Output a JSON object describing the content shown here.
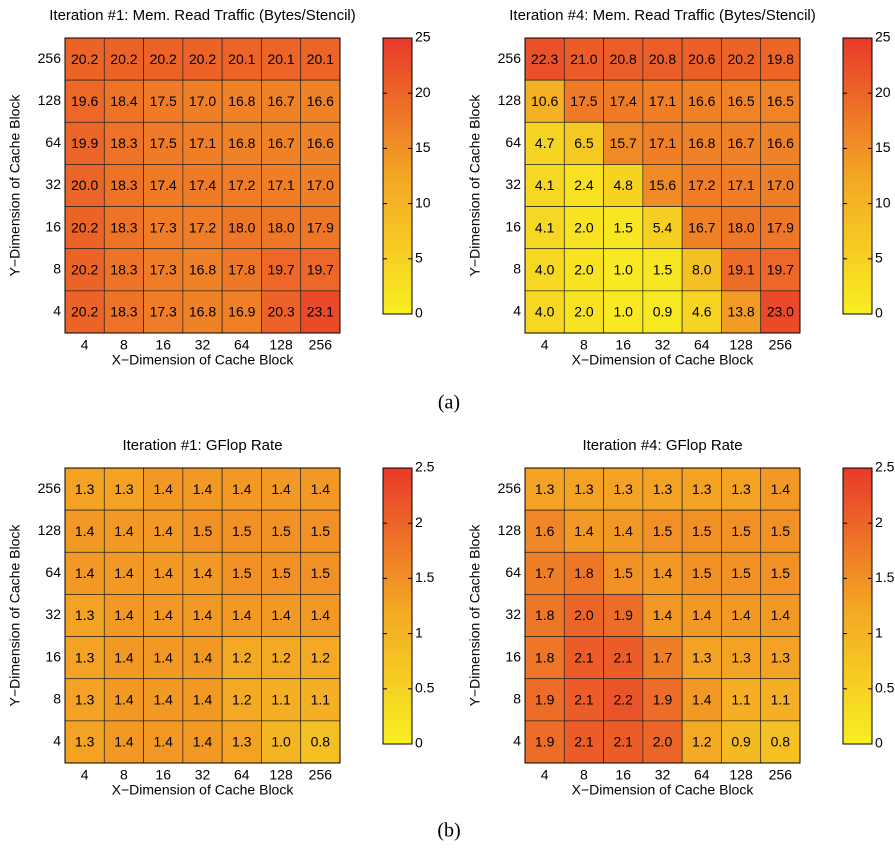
{
  "chart_data": [
    {
      "type": "heatmap",
      "title": "Iteration #1: Mem. Read Traffic (Bytes/Stencil)",
      "x_label": "X−Dimension of Cache Block",
      "y_label": "Y−Dimension of Cache Block",
      "x_categories": [
        "4",
        "8",
        "16",
        "32",
        "64",
        "128",
        "256"
      ],
      "y_categories": [
        "256",
        "128",
        "64",
        "32",
        "16",
        "8",
        "4"
      ],
      "values": [
        [
          20.2,
          20.2,
          20.2,
          20.2,
          20.1,
          20.1,
          20.1
        ],
        [
          19.6,
          18.4,
          17.5,
          17.0,
          16.8,
          16.7,
          16.6
        ],
        [
          19.9,
          18.3,
          17.5,
          17.1,
          16.8,
          16.7,
          16.6
        ],
        [
          20.0,
          18.3,
          17.4,
          17.4,
          17.2,
          17.1,
          17.0
        ],
        [
          20.2,
          18.3,
          17.3,
          17.2,
          18.0,
          18.0,
          17.9
        ],
        [
          20.2,
          18.3,
          17.3,
          16.8,
          17.8,
          19.7,
          19.7
        ],
        [
          20.2,
          18.3,
          17.3,
          16.8,
          16.9,
          20.3,
          23.1
        ]
      ],
      "value_labels": [
        [
          "20.2",
          "20.2",
          "20.2",
          "20.2",
          "20.1",
          "20.1",
          "20.1"
        ],
        [
          "19.6",
          "18.4",
          "17.5",
          "17.0",
          "16.8",
          "16.7",
          "16.6"
        ],
        [
          "19.9",
          "18.3",
          "17.5",
          "17.1",
          "16.8",
          "16.7",
          "16.6"
        ],
        [
          "20.0",
          "18.3",
          "17.4",
          "17.4",
          "17.2",
          "17.1",
          "17.0"
        ],
        [
          "20.2",
          "18.3",
          "17.3",
          "17.2",
          "18.0",
          "18.0",
          "17.9"
        ],
        [
          "20.2",
          "18.3",
          "17.3",
          "16.8",
          "17.8",
          "19.7",
          "19.7"
        ],
        [
          "20.2",
          "18.3",
          "17.3",
          "16.8",
          "16.9",
          "20.3",
          "23.1"
        ]
      ],
      "zlim": [
        0,
        25
      ],
      "zticks": [
        0,
        5,
        10,
        15,
        20,
        25
      ],
      "colormap": [
        "#f8ef22",
        "#f3a624",
        "#e8392b"
      ]
    },
    {
      "type": "heatmap",
      "title": "Iteration #4: Mem. Read Traffic (Bytes/Stencil)",
      "x_label": "X−Dimension of Cache Block",
      "y_label": "Y−Dimension of Cache Block",
      "x_categories": [
        "4",
        "8",
        "16",
        "32",
        "64",
        "128",
        "256"
      ],
      "y_categories": [
        "256",
        "128",
        "64",
        "32",
        "16",
        "8",
        "4"
      ],
      "values": [
        [
          22.3,
          21.0,
          20.8,
          20.8,
          20.6,
          20.2,
          19.8
        ],
        [
          10.6,
          17.5,
          17.4,
          17.1,
          16.6,
          16.5,
          16.5
        ],
        [
          4.7,
          6.5,
          15.7,
          17.1,
          16.8,
          16.7,
          16.6
        ],
        [
          4.1,
          2.4,
          4.8,
          15.6,
          17.2,
          17.1,
          17.0
        ],
        [
          4.1,
          2.0,
          1.5,
          5.4,
          16.7,
          18.0,
          17.9
        ],
        [
          4.0,
          2.0,
          1.0,
          1.5,
          8.0,
          19.1,
          19.7
        ],
        [
          4.0,
          2.0,
          1.0,
          0.9,
          4.6,
          13.8,
          23.0
        ]
      ],
      "value_labels": [
        [
          "22.3",
          "21.0",
          "20.8",
          "20.8",
          "20.6",
          "20.2",
          "19.8"
        ],
        [
          "10.6",
          "17.5",
          "17.4",
          "17.1",
          "16.6",
          "16.5",
          "16.5"
        ],
        [
          "4.7",
          "6.5",
          "15.7",
          "17.1",
          "16.8",
          "16.7",
          "16.6"
        ],
        [
          "4.1",
          "2.4",
          "4.8",
          "15.6",
          "17.2",
          "17.1",
          "17.0"
        ],
        [
          "4.1",
          "2.0",
          "1.5",
          "5.4",
          "16.7",
          "18.0",
          "17.9"
        ],
        [
          "4.0",
          "2.0",
          "1.0",
          "1.5",
          "8.0",
          "19.1",
          "19.7"
        ],
        [
          "4.0",
          "2.0",
          "1.0",
          "0.9",
          "4.6",
          "13.8",
          "23.0"
        ]
      ],
      "zlim": [
        0,
        25
      ],
      "zticks": [
        0,
        5,
        10,
        15,
        20,
        25
      ],
      "colormap": [
        "#f8ef22",
        "#f3a624",
        "#e8392b"
      ]
    },
    {
      "type": "heatmap",
      "title": "Iteration #1: GFlop Rate",
      "x_label": "X−Dimension of Cache Block",
      "y_label": "Y−Dimension of Cache Block",
      "x_categories": [
        "4",
        "8",
        "16",
        "32",
        "64",
        "128",
        "256"
      ],
      "y_categories": [
        "256",
        "128",
        "64",
        "32",
        "16",
        "8",
        "4"
      ],
      "values": [
        [
          1.3,
          1.3,
          1.4,
          1.4,
          1.4,
          1.4,
          1.4
        ],
        [
          1.4,
          1.4,
          1.4,
          1.5,
          1.5,
          1.5,
          1.5
        ],
        [
          1.4,
          1.4,
          1.4,
          1.4,
          1.5,
          1.5,
          1.5
        ],
        [
          1.3,
          1.4,
          1.4,
          1.4,
          1.4,
          1.4,
          1.4
        ],
        [
          1.3,
          1.4,
          1.4,
          1.4,
          1.2,
          1.2,
          1.2
        ],
        [
          1.3,
          1.4,
          1.4,
          1.4,
          1.2,
          1.1,
          1.1
        ],
        [
          1.3,
          1.4,
          1.4,
          1.4,
          1.3,
          1.0,
          0.8
        ]
      ],
      "value_labels": [
        [
          "1.3",
          "1.3",
          "1.4",
          "1.4",
          "1.4",
          "1.4",
          "1.4"
        ],
        [
          "1.4",
          "1.4",
          "1.4",
          "1.5",
          "1.5",
          "1.5",
          "1.5"
        ],
        [
          "1.4",
          "1.4",
          "1.4",
          "1.4",
          "1.5",
          "1.5",
          "1.5"
        ],
        [
          "1.3",
          "1.4",
          "1.4",
          "1.4",
          "1.4",
          "1.4",
          "1.4"
        ],
        [
          "1.3",
          "1.4",
          "1.4",
          "1.4",
          "1.2",
          "1.2",
          "1.2"
        ],
        [
          "1.3",
          "1.4",
          "1.4",
          "1.4",
          "1.2",
          "1.1",
          "1.1"
        ],
        [
          "1.3",
          "1.4",
          "1.4",
          "1.4",
          "1.3",
          "1.0",
          "0.8"
        ]
      ],
      "zlim": [
        0,
        2.5
      ],
      "zticks": [
        0,
        0.5,
        1,
        1.5,
        2,
        2.5
      ],
      "colormap": [
        "#f8ef22",
        "#f3a624",
        "#e8392b"
      ]
    },
    {
      "type": "heatmap",
      "title": "Iteration #4: GFlop Rate",
      "x_label": "X−Dimension of Cache Block",
      "y_label": "Y−Dimension of Cache Block",
      "x_categories": [
        "4",
        "8",
        "16",
        "32",
        "64",
        "128",
        "256"
      ],
      "y_categories": [
        "256",
        "128",
        "64",
        "32",
        "16",
        "8",
        "4"
      ],
      "values": [
        [
          1.3,
          1.3,
          1.3,
          1.3,
          1.3,
          1.3,
          1.4
        ],
        [
          1.6,
          1.4,
          1.4,
          1.5,
          1.5,
          1.5,
          1.5
        ],
        [
          1.7,
          1.8,
          1.5,
          1.4,
          1.5,
          1.5,
          1.5
        ],
        [
          1.8,
          2.0,
          1.9,
          1.4,
          1.4,
          1.4,
          1.4
        ],
        [
          1.8,
          2.1,
          2.1,
          1.7,
          1.3,
          1.3,
          1.3
        ],
        [
          1.9,
          2.1,
          2.2,
          1.9,
          1.4,
          1.1,
          1.1
        ],
        [
          1.9,
          2.1,
          2.1,
          2.0,
          1.2,
          0.9,
          0.8
        ]
      ],
      "value_labels": [
        [
          "1.3",
          "1.3",
          "1.3",
          "1.3",
          "1.3",
          "1.3",
          "1.4"
        ],
        [
          "1.6",
          "1.4",
          "1.4",
          "1.5",
          "1.5",
          "1.5",
          "1.5"
        ],
        [
          "1.7",
          "1.8",
          "1.5",
          "1.4",
          "1.5",
          "1.5",
          "1.5"
        ],
        [
          "1.8",
          "2.0",
          "1.9",
          "1.4",
          "1.4",
          "1.4",
          "1.4"
        ],
        [
          "1.8",
          "2.1",
          "2.1",
          "1.7",
          "1.3",
          "1.3",
          "1.3"
        ],
        [
          "1.9",
          "2.1",
          "2.2",
          "1.9",
          "1.4",
          "1.1",
          "1.1"
        ],
        [
          "1.9",
          "2.1",
          "2.1",
          "2.0",
          "1.2",
          "0.9",
          "0.8"
        ]
      ],
      "zlim": [
        0,
        2.5
      ],
      "zticks": [
        0,
        0.5,
        1,
        1.5,
        2,
        2.5
      ],
      "colormap": [
        "#f8ef22",
        "#f3a624",
        "#e8392b"
      ]
    }
  ],
  "captions": [
    "(a)",
    "(b)"
  ]
}
